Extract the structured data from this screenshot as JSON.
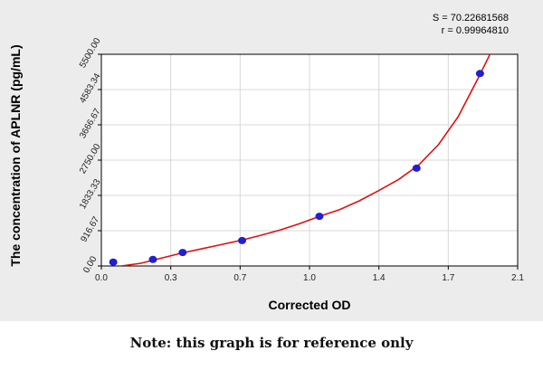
{
  "chart_data": {
    "type": "scatter",
    "xlabel": "Corrected OD",
    "ylabel": "The concentration of APLNR (pg/mL)",
    "xlim": [
      0.0,
      2.1
    ],
    "ylim": [
      0.0,
      5500.0
    ],
    "x_ticks": [
      "0.0",
      "0.3",
      "0.7",
      "1.0",
      "1.4",
      "1.7",
      "2.1"
    ],
    "x_tick_values": [
      0.0,
      0.35,
      0.7,
      1.05,
      1.4,
      1.75,
      2.1
    ],
    "y_ticks": [
      "0.00",
      "916.67",
      "1833.33",
      "2750.00",
      "3666.67",
      "4583.34",
      "5500.00"
    ],
    "y_tick_values": [
      0.0,
      916.67,
      1833.33,
      2750.0,
      3666.67,
      4583.34,
      5500.0
    ],
    "grid": true,
    "series": [
      {
        "points": [
          {
            "x": 0.06,
            "y": 100
          },
          {
            "x": 0.26,
            "y": 170
          },
          {
            "x": 0.41,
            "y": 350
          },
          {
            "x": 0.71,
            "y": 660
          },
          {
            "x": 1.1,
            "y": 1290
          },
          {
            "x": 1.59,
            "y": 2540
          },
          {
            "x": 1.91,
            "y": 5000
          }
        ],
        "marker_color": "#1f1fd6",
        "fit_color": "#dd1111",
        "fit_curve": [
          {
            "x": 0.1,
            "y": 0
          },
          {
            "x": 0.2,
            "y": 70
          },
          {
            "x": 0.3,
            "y": 200
          },
          {
            "x": 0.4,
            "y": 330
          },
          {
            "x": 0.5,
            "y": 440
          },
          {
            "x": 0.6,
            "y": 550
          },
          {
            "x": 0.7,
            "y": 660
          },
          {
            "x": 0.8,
            "y": 790
          },
          {
            "x": 0.9,
            "y": 930
          },
          {
            "x": 1.0,
            "y": 1100
          },
          {
            "x": 1.1,
            "y": 1290
          },
          {
            "x": 1.2,
            "y": 1460
          },
          {
            "x": 1.3,
            "y": 1690
          },
          {
            "x": 1.4,
            "y": 1960
          },
          {
            "x": 1.5,
            "y": 2250
          },
          {
            "x": 1.6,
            "y": 2620
          },
          {
            "x": 1.7,
            "y": 3150
          },
          {
            "x": 1.8,
            "y": 3880
          },
          {
            "x": 1.9,
            "y": 4870
          },
          {
            "x": 1.97,
            "y": 5600
          }
        ]
      }
    ],
    "annotations": {
      "s_value": "S = 70.22681568",
      "r_value": "r = 0.99964810"
    }
  },
  "note": "Note: this graph is for reference only",
  "colors": {
    "panel_background": "#ececec",
    "plot_background": "#ffffff",
    "grid": "#d8d8d8",
    "axis": "#000000"
  }
}
